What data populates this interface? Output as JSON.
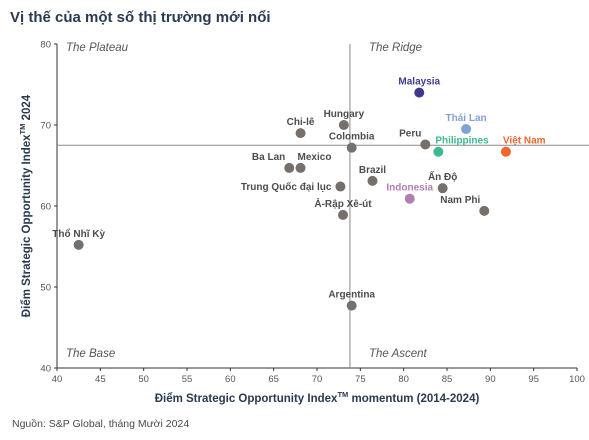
{
  "chart_data": {
    "type": "scatter",
    "title": "Vị thế của một số thị trường mới nổi",
    "source": "Nguồn: S&P Global, tháng Mười 2024",
    "xlabel": "Điểm Strategic Opportunity Index",
    "xlabel_sup": "TM",
    "xlabel_tail": " momentum (2014-2024)",
    "ylabel": "Điểm Strategic Opportunity Index",
    "ylabel_sup": "TM",
    "ylabel_tail": " 2024",
    "xlim": [
      40,
      100
    ],
    "ylim": [
      40,
      80
    ],
    "x_ticks": [
      "40",
      "45",
      "50",
      "55",
      "60",
      "65",
      "70",
      "75",
      "80",
      "85",
      "90",
      "95",
      "100"
    ],
    "y_ticks": [
      "40",
      "50",
      "60",
      "70",
      "80"
    ],
    "x_divider": 73.8,
    "y_divider": 67.5,
    "quadrants": {
      "top_left": "The Plateau",
      "top_right": "The Ridge",
      "bottom_left": "The Base",
      "bottom_right": "The Ascent"
    },
    "grid": false,
    "colors": {
      "default_point": "#76706d",
      "default_label": "#4d4d4d",
      "malaysia": "#3d3a8c",
      "thailand": "#7fa3d6",
      "philippines": "#3dba8e",
      "vietnam": "#f0662b",
      "indonesia": "#b07fb0",
      "divider": "#8a8a8a",
      "axis": "#333333",
      "title": "#2a3a4f"
    },
    "points": [
      {
        "name": "Malaysia",
        "x": 81.8,
        "y": 74.0,
        "color": "#3d3a8c",
        "label_color": "#3d3a8c",
        "label_pos": "above"
      },
      {
        "name": "Thái Lan",
        "x": 87.2,
        "y": 69.5,
        "color": "#7fa3d6",
        "label_color": "#7fa3d6",
        "label_pos": "above"
      },
      {
        "name": "Việt Nam",
        "x": 91.8,
        "y": 66.7,
        "color": "#f0662b",
        "label_color": "#f0662b",
        "label_pos": "above-right"
      },
      {
        "name": "Philippines",
        "x": 84.0,
        "y": 66.7,
        "color": "#3dba8e",
        "label_color": "#3dba8e",
        "label_pos": "above-right"
      },
      {
        "name": "Indonesia",
        "x": 80.7,
        "y": 60.9,
        "color": "#b07fb0",
        "label_color": "#b07fb0",
        "label_pos": "above"
      },
      {
        "name": "Peru",
        "x": 82.5,
        "y": 67.6,
        "color": "#76706d",
        "label_color": "#4d4d4d",
        "label_pos": "above-left"
      },
      {
        "name": "Hungary",
        "x": 73.1,
        "y": 70.0,
        "color": "#76706d",
        "label_color": "#4d4d4d",
        "label_pos": "above"
      },
      {
        "name": "Chi-lê",
        "x": 68.1,
        "y": 69.0,
        "color": "#76706d",
        "label_color": "#4d4d4d",
        "label_pos": "above"
      },
      {
        "name": "Colombia",
        "x": 74.0,
        "y": 67.2,
        "color": "#76706d",
        "label_color": "#4d4d4d",
        "label_pos": "above"
      },
      {
        "name": "Ba Lan",
        "x": 66.8,
        "y": 64.7,
        "color": "#76706d",
        "label_color": "#4d4d4d",
        "label_pos": "above-left"
      },
      {
        "name": "Mexico",
        "x": 68.1,
        "y": 64.7,
        "color": "#76706d",
        "label_color": "#4d4d4d",
        "label_pos": "above-right"
      },
      {
        "name": "Brazil",
        "x": 76.4,
        "y": 63.1,
        "color": "#76706d",
        "label_color": "#4d4d4d",
        "label_pos": "above"
      },
      {
        "name": "Trung Quốc đại lục",
        "x": 72.7,
        "y": 62.4,
        "color": "#76706d",
        "label_color": "#4d4d4d",
        "label_pos": "left"
      },
      {
        "name": "Ấn Độ",
        "x": 84.5,
        "y": 62.2,
        "color": "#76706d",
        "label_color": "#4d4d4d",
        "label_pos": "above"
      },
      {
        "name": "Ả-Rập Xê-út",
        "x": 73.0,
        "y": 58.9,
        "color": "#76706d",
        "label_color": "#4d4d4d",
        "label_pos": "above"
      },
      {
        "name": "Nam Phi",
        "x": 89.3,
        "y": 59.4,
        "color": "#76706d",
        "label_color": "#4d4d4d",
        "label_pos": "above-left"
      },
      {
        "name": "Thổ Nhĩ Kỳ",
        "x": 42.5,
        "y": 55.2,
        "color": "#76706d",
        "label_color": "#4d4d4d",
        "label_pos": "above"
      },
      {
        "name": "Argentina",
        "x": 74.0,
        "y": 47.7,
        "color": "#76706d",
        "label_color": "#4d4d4d",
        "label_pos": "above"
      }
    ]
  }
}
